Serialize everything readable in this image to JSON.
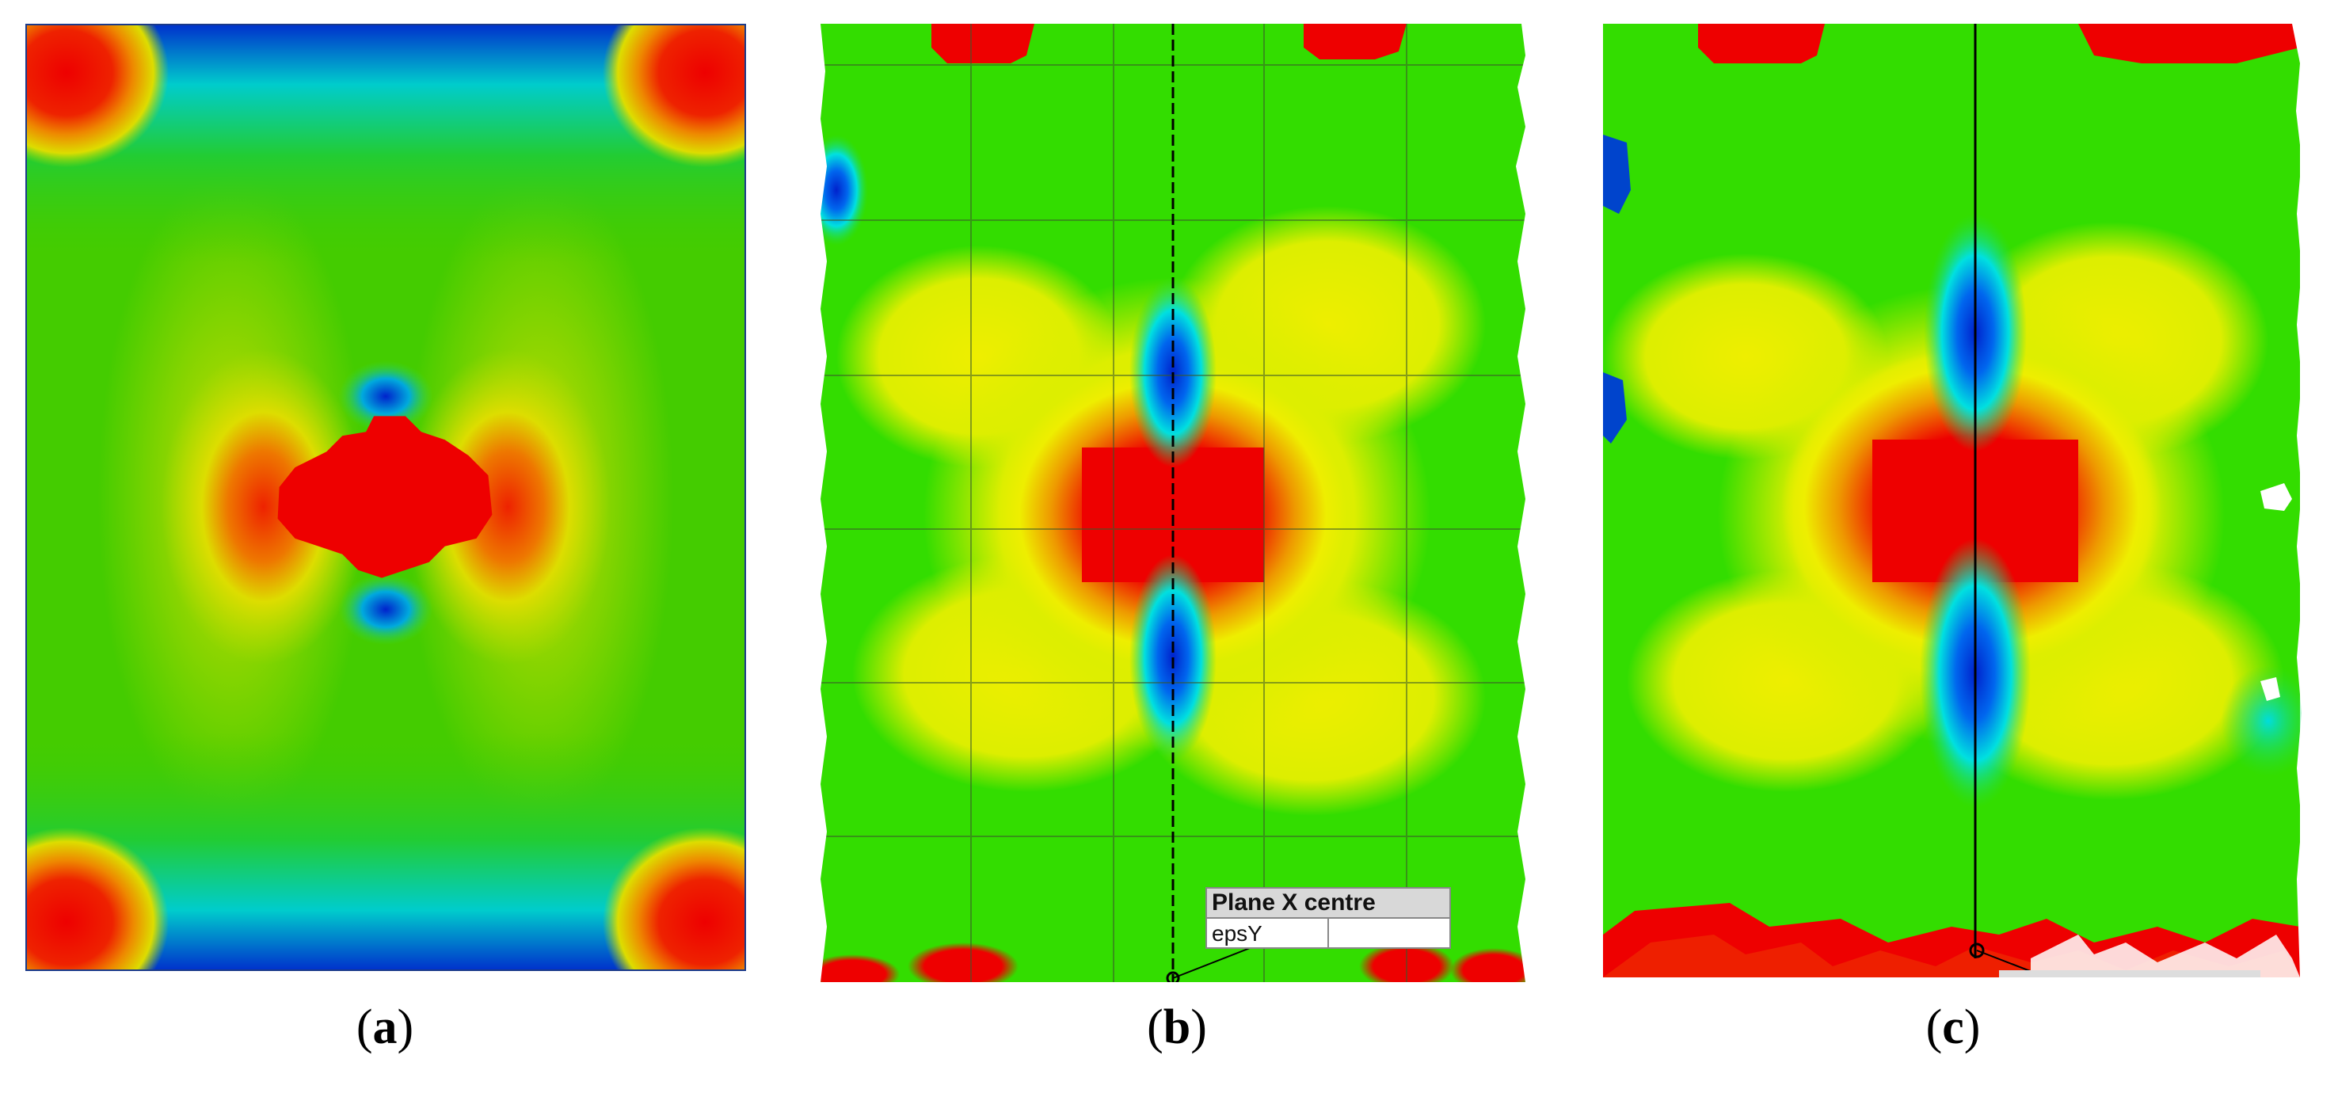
{
  "panels": [
    {
      "id": "a",
      "caption_letter": "a"
    },
    {
      "id": "b",
      "caption_letter": "b"
    },
    {
      "id": "c",
      "caption_letter": "c"
    }
  ],
  "legend": {
    "title": "Plane X centre",
    "row_key": "epsY",
    "row_value": ""
  },
  "colors": {
    "red": "#ee0000",
    "yellow": "#eeee00",
    "green": "#22dd00",
    "cyan": "#00e6e6",
    "blue": "#0022cc"
  }
}
